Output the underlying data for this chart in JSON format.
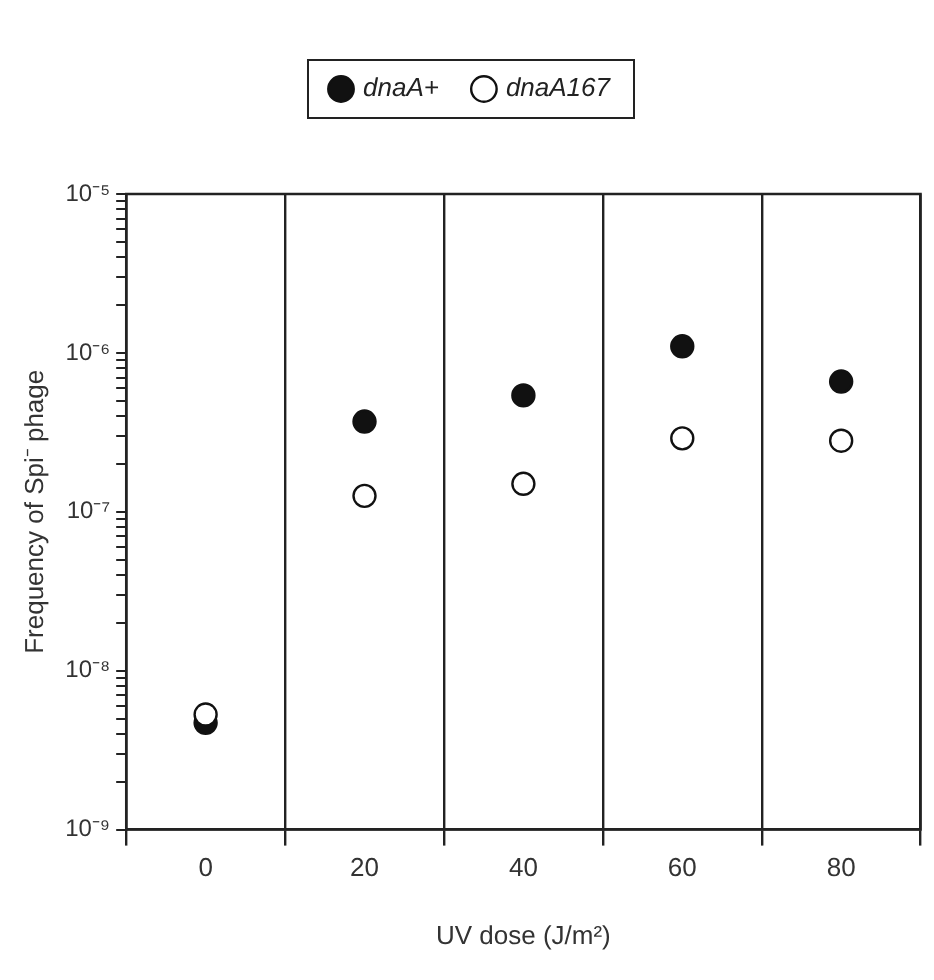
{
  "chart_data": {
    "type": "scatter",
    "xlabel": "UV dose (J/m²)",
    "ylabel": "Frequency of Spi⁻ phage",
    "categories": [
      "0",
      "20",
      "40",
      "60",
      "80"
    ],
    "series": [
      {
        "name": "dnaA+",
        "color": "#111111",
        "values": [
          4.7e-09,
          3.7e-07,
          5.4e-07,
          1.1e-06,
          6.6e-07
        ]
      },
      {
        "name": "dnaA167",
        "color": "#ffffff",
        "values": [
          5.3e-09,
          1.26e-07,
          1.5e-07,
          2.9e-07,
          2.8e-07
        ]
      }
    ],
    "log": "y",
    "ylim": [
      1e-09,
      1e-05
    ],
    "yticks": [
      {
        "value": 1e-09,
        "label": "10⁻⁹"
      },
      {
        "value": 2e-09,
        "label": null
      },
      {
        "value": 3e-09,
        "label": null
      },
      {
        "value": 4e-09,
        "label": null
      },
      {
        "value": 5e-09,
        "label": null
      },
      {
        "value": 6e-09,
        "label": null
      },
      {
        "value": 7e-09,
        "label": null
      },
      {
        "value": 8e-09,
        "label": null
      },
      {
        "value": 9e-09,
        "label": null
      },
      {
        "value": 1e-08,
        "label": "10⁻⁸"
      },
      {
        "value": 2e-08,
        "label": null
      },
      {
        "value": 3e-08,
        "label": null
      },
      {
        "value": 4e-08,
        "label": null
      },
      {
        "value": 5e-08,
        "label": null
      },
      {
        "value": 6e-08,
        "label": null
      },
      {
        "value": 7e-08,
        "label": null
      },
      {
        "value": 8e-08,
        "label": null
      },
      {
        "value": 9e-08,
        "label": null
      },
      {
        "value": 1e-07,
        "label": "10⁻⁷"
      },
      {
        "value": 2e-07,
        "label": null
      },
      {
        "value": 3e-07,
        "label": null
      },
      {
        "value": 4e-07,
        "label": null
      },
      {
        "value": 5e-07,
        "label": null
      },
      {
        "value": 6e-07,
        "label": null
      },
      {
        "value": 7e-07,
        "label": null
      },
      {
        "value": 8e-07,
        "label": null
      },
      {
        "value": 9e-07,
        "label": null
      },
      {
        "value": 1e-06,
        "label": "10⁻⁶"
      },
      {
        "value": 2e-06,
        "label": null
      },
      {
        "value": 3e-06,
        "label": null
      },
      {
        "value": 4e-06,
        "label": null
      },
      {
        "value": 5e-06,
        "label": null
      },
      {
        "value": 6e-06,
        "label": null
      },
      {
        "value": 7e-06,
        "label": null
      },
      {
        "value": 8e-06,
        "label": null
      },
      {
        "value": 9e-06,
        "label": null
      },
      {
        "value": 1e-05,
        "label": "10⁻⁵"
      }
    ],
    "grid": "x",
    "legend": "top",
    "marker": "circle"
  }
}
